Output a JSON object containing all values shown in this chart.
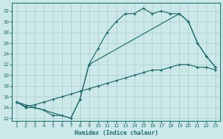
{
  "bg_color": "#cce8e8",
  "grid_color": "#a8cccc",
  "line_color": "#1a6e6e",
  "xlabel": "Humidex (Indice chaleur)",
  "xlim": [
    0.5,
    23.5
  ],
  "ylim": [
    11.5,
    33.5
  ],
  "xticks": [
    1,
    2,
    3,
    4,
    5,
    6,
    7,
    8,
    9,
    10,
    11,
    12,
    13,
    14,
    15,
    16,
    17,
    18,
    19,
    20,
    21,
    22,
    23
  ],
  "yticks": [
    12,
    14,
    16,
    18,
    20,
    22,
    24,
    26,
    28,
    30,
    32
  ],
  "curve1_x": [
    1,
    2,
    3,
    4,
    5,
    6,
    7,
    8,
    9,
    10,
    11,
    12,
    13,
    14,
    15,
    16,
    17,
    18,
    19,
    20,
    21,
    22,
    23
  ],
  "curve1_y": [
    15,
    14,
    14,
    13.5,
    12.5,
    12.5,
    12,
    15.5,
    22,
    25,
    28,
    30,
    31.5,
    31.5,
    32.5,
    31.5,
    32,
    31.5,
    31.5,
    30,
    26,
    23.5,
    21.5
  ],
  "curve2_x": [
    1,
    7,
    8,
    9,
    19,
    20,
    21,
    22,
    23
  ],
  "curve2_y": [
    15,
    12,
    15.5,
    22,
    31.5,
    30,
    26,
    23.5,
    21.5
  ],
  "curve3_x": [
    1,
    2,
    3,
    4,
    5,
    6,
    7,
    8,
    9,
    10,
    11,
    12,
    13,
    14,
    15,
    16,
    17,
    18,
    19,
    20,
    21,
    22,
    23
  ],
  "curve3_y": [
    15,
    14.2,
    14.5,
    15,
    15.5,
    16,
    16.5,
    17,
    17.5,
    18,
    18.5,
    19,
    19.5,
    20,
    20.5,
    21,
    21,
    21.5,
    22,
    22,
    21.5,
    21.5,
    21
  ]
}
